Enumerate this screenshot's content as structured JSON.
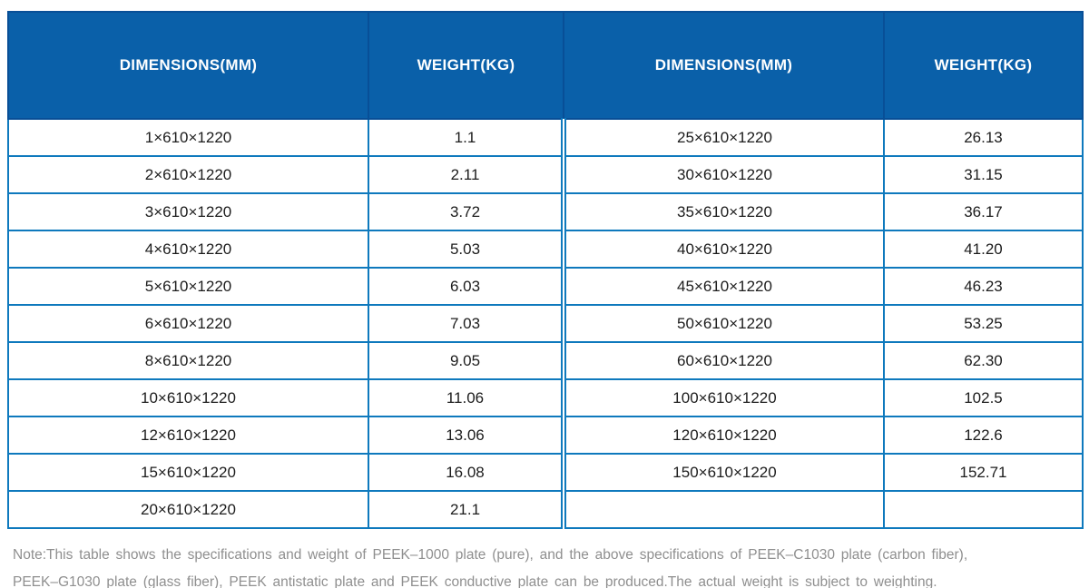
{
  "table": {
    "columns": [
      "DIMENSIONS(MM)",
      "WEIGHT(KG)",
      "DIMENSIONS(MM)",
      "WEIGHT(KG)"
    ],
    "rows": [
      [
        "1×610×1220",
        "1.1",
        "25×610×1220",
        "26.13"
      ],
      [
        "2×610×1220",
        "2.11",
        "30×610×1220",
        "31.15"
      ],
      [
        "3×610×1220",
        "3.72",
        "35×610×1220",
        "36.17"
      ],
      [
        "4×610×1220",
        "5.03",
        "40×610×1220",
        "41.20"
      ],
      [
        "5×610×1220",
        "6.03",
        "45×610×1220",
        "46.23"
      ],
      [
        "6×610×1220",
        "7.03",
        "50×610×1220",
        "53.25"
      ],
      [
        "8×610×1220",
        "9.05",
        "60×610×1220",
        "62.30"
      ],
      [
        "10×610×1220",
        "11.06",
        "100×610×1220",
        "102.5"
      ],
      [
        "12×610×1220",
        "13.06",
        "120×610×1220",
        "122.6"
      ],
      [
        "15×610×1220",
        "16.08",
        "150×610×1220",
        "152.71"
      ],
      [
        "20×610×1220",
        "21.1",
        "",
        ""
      ]
    ]
  },
  "note": {
    "lines": [
      "Note:This table shows the specifications and weight of PEEK–1000 plate (pure), and the above specifications of PEEK–C1030 plate (carbon fiber),",
      "PEEK–G1030 plate (glass fiber), PEEK antistatic plate and PEEK conductive plate can be produced.The actual weight is subject to weighting."
    ]
  },
  "colors": {
    "header_bg": "#0a60a9",
    "header_divider": "#084f97",
    "header_text": "#ffffff",
    "body_border": "#0e79bd",
    "body_text": "#1c1c1c",
    "note_text": "#8f8f8f"
  }
}
